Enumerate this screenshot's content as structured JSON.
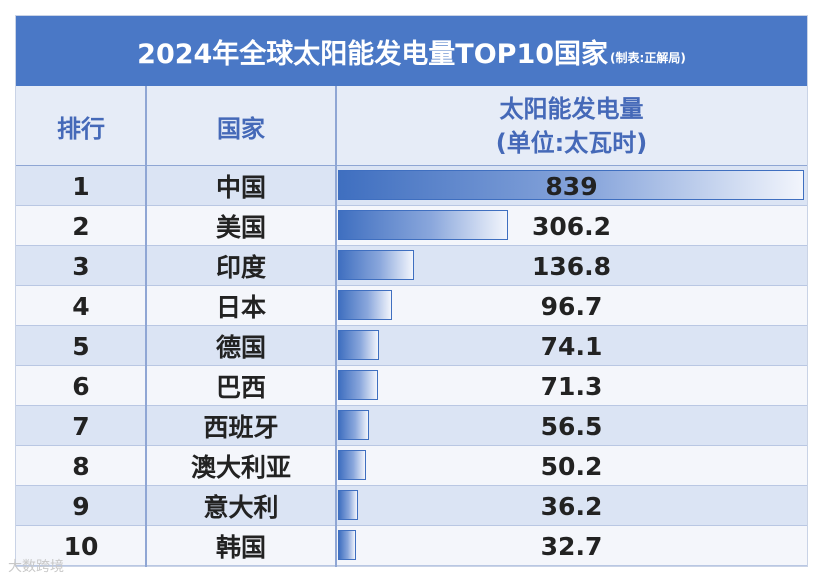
{
  "title": "2024年全球太阳能发电量TOP10国家",
  "subtitle": "(制表:正解局)",
  "watermark": "大数跨境",
  "columns": {
    "rank": "排行",
    "country": "国家",
    "value_line1": "太阳能发电量",
    "value_line2": "(单位:太瓦时)"
  },
  "colors": {
    "title_bg": "#4a78c6",
    "header_text": "#4569b8",
    "bar": "#3f6fc0",
    "row_odd": "#dbe4f4",
    "row_even": "#f4f6fb"
  },
  "chart_data": {
    "type": "bar",
    "title": "2024年全球太阳能发电量TOP10国家",
    "ylabel": "太阳能发电量 (单位:太瓦时)",
    "categories": [
      "中国",
      "美国",
      "印度",
      "日本",
      "德国",
      "巴西",
      "西班牙",
      "澳大利亚",
      "意大利",
      "韩国"
    ],
    "ranks": [
      "1",
      "2",
      "3",
      "4",
      "5",
      "6",
      "7",
      "8",
      "9",
      "10"
    ],
    "values": [
      839,
      306.2,
      136.8,
      96.7,
      74.1,
      71.3,
      56.5,
      50.2,
      36.2,
      32.7
    ],
    "value_labels": [
      "839",
      "306.2",
      "136.8",
      "96.7",
      "74.1",
      "71.3",
      "56.5",
      "50.2",
      "36.2",
      "32.7"
    ],
    "ylim": [
      0,
      839
    ]
  }
}
